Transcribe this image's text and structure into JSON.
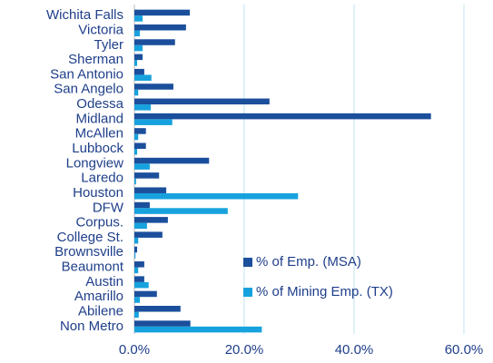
{
  "chart_data": {
    "type": "hbar",
    "categories": [
      "Wichita Falls",
      "Victoria",
      "Tyler",
      "Sherman",
      "San Antonio",
      "San Angelo",
      "Odessa",
      "Midland",
      "McAllen",
      "Lubbock",
      "Longview",
      "Laredo",
      "Houston",
      "DFW",
      "Corpus.",
      "College St.",
      "Brownsville",
      "Beaumont",
      "Austin",
      "Amarillo",
      "Abilene",
      "Non Metro"
    ],
    "series": [
      {
        "name": "% of Emp. (MSA)",
        "color": "#1b4f9c",
        "values": [
          10.1,
          9.4,
          7.4,
          1.5,
          1.8,
          7.1,
          24.6,
          54.0,
          2.1,
          2.1,
          13.6,
          4.5,
          5.8,
          2.8,
          6.1,
          5.1,
          0.5,
          1.8,
          1.8,
          4.1,
          8.4,
          10.2
        ]
      },
      {
        "name": "% of Mining Emp. (TX)",
        "color": "#17a2de",
        "values": [
          1.5,
          1.0,
          1.5,
          0.5,
          3.1,
          0.7,
          3.0,
          6.9,
          0.7,
          0.5,
          2.8,
          0.3,
          29.8,
          17.0,
          2.3,
          0.7,
          0.2,
          0.7,
          2.6,
          1.0,
          0.8,
          23.2
        ]
      }
    ],
    "xlim": [
      0,
      60
    ],
    "xticks": [
      {
        "value": 0,
        "label": "0.0%"
      },
      {
        "value": 20,
        "label": "20.0%"
      },
      {
        "value": 40,
        "label": "40.0%"
      },
      {
        "value": 60,
        "label": "60.0%"
      }
    ],
    "grid": true
  }
}
